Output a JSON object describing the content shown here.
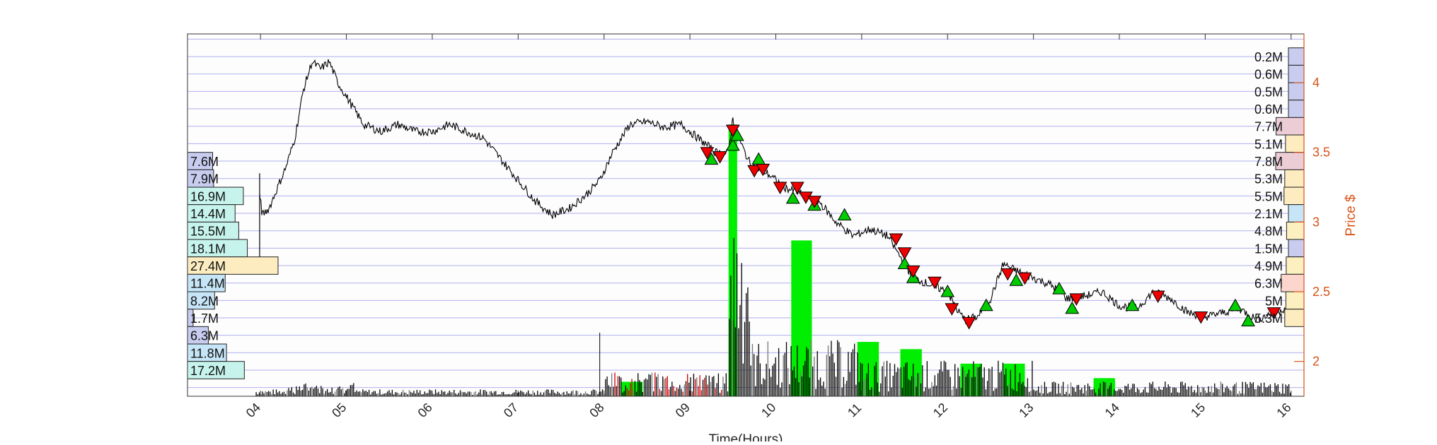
{
  "chart_data": {
    "type": "line",
    "xlabel": "Time(Hours)",
    "ylabel": "Price $",
    "x_ticks": [
      "04",
      "05",
      "06",
      "07",
      "08",
      "09",
      "10",
      "11",
      "12",
      "13",
      "14",
      "15",
      "16"
    ],
    "y_ticks": [
      "2",
      "2.5",
      "3",
      "3.5",
      "4"
    ],
    "xlim": [
      3.15,
      16.15
    ],
    "ylim": [
      1.75,
      4.35
    ],
    "grid": "horizontal",
    "colors": {
      "price": "#000000",
      "buy_marker": "#00cc00",
      "sell_marker": "#ee0000",
      "volume_up": "#00ee00",
      "volume_down": "#cc0000",
      "volume_neutral": "#000000",
      "right_axis": "#d95319",
      "grid": "#b0b0f0"
    },
    "price_series": {
      "name": "",
      "x": [
        3.99,
        4.02,
        4.1,
        4.2,
        4.3,
        4.4,
        4.5,
        4.6,
        4.7,
        4.8,
        4.9,
        5.0,
        5.2,
        5.4,
        5.6,
        5.8,
        6.0,
        6.2,
        6.4,
        6.6,
        6.8,
        7.0,
        7.2,
        7.4,
        7.6,
        7.8,
        7.95,
        8.1,
        8.3,
        8.5,
        8.7,
        8.9,
        9.1,
        9.3,
        9.45,
        9.5,
        9.55,
        9.7,
        9.9,
        10.1,
        10.3,
        10.5,
        10.7,
        10.9,
        11.1,
        11.3,
        11.45,
        11.6,
        11.8,
        12.0,
        12.1,
        12.2,
        12.35,
        12.5,
        12.65,
        12.8,
        13.0,
        13.2,
        13.4,
        13.6,
        13.8,
        14.0,
        14.2,
        14.4,
        14.6,
        14.8,
        15.0,
        15.2,
        15.4,
        15.6,
        15.8,
        16.0
      ],
      "y": [
        3.2,
        3.05,
        3.1,
        3.25,
        3.4,
        3.6,
        3.95,
        4.15,
        4.1,
        4.15,
        4.0,
        3.9,
        3.7,
        3.65,
        3.7,
        3.65,
        3.65,
        3.7,
        3.65,
        3.6,
        3.45,
        3.3,
        3.15,
        3.05,
        3.1,
        3.2,
        3.3,
        3.5,
        3.7,
        3.72,
        3.68,
        3.7,
        3.6,
        3.5,
        3.5,
        3.75,
        3.62,
        3.42,
        3.35,
        3.25,
        3.2,
        3.15,
        3.0,
        2.9,
        2.95,
        2.9,
        2.75,
        2.6,
        2.55,
        2.5,
        2.38,
        2.3,
        2.32,
        2.45,
        2.7,
        2.65,
        2.6,
        2.55,
        2.45,
        2.47,
        2.5,
        2.4,
        2.38,
        2.5,
        2.45,
        2.35,
        2.32,
        2.35,
        2.38,
        2.3,
        2.35,
        2.4
      ]
    },
    "buy_markers": {
      "x": [
        9.25,
        9.5,
        9.55,
        9.8,
        10.2,
        10.45,
        10.8,
        11.5,
        11.6,
        12.0,
        12.45,
        12.8,
        13.3,
        13.45,
        14.15,
        15.35,
        15.5
      ],
      "y": [
        3.45,
        3.55,
        3.62,
        3.45,
        3.17,
        3.12,
        3.05,
        2.7,
        2.6,
        2.5,
        2.4,
        2.58,
        2.52,
        2.38,
        2.4,
        2.4,
        2.29
      ]
    },
    "sell_markers": {
      "x": [
        9.2,
        9.35,
        9.5,
        9.75,
        9.85,
        10.05,
        10.25,
        10.35,
        10.45,
        11.4,
        11.5,
        11.6,
        11.85,
        12.05,
        12.25,
        12.7,
        12.9,
        13.5,
        14.45,
        14.95,
        15.8
      ],
      "y": [
        3.5,
        3.47,
        3.66,
        3.37,
        3.38,
        3.25,
        3.25,
        3.18,
        3.15,
        2.88,
        2.78,
        2.65,
        2.57,
        2.38,
        2.28,
        2.63,
        2.6,
        2.45,
        2.47,
        2.32,
        2.35
      ]
    },
    "volume_profile_left": {
      "labels": [
        "7.6M",
        "7.9M",
        "16.9M",
        "14.4M",
        "15.5M",
        "18.1M",
        "27.4M",
        "11.4M",
        "8.2M",
        "1.7M",
        "6.3M",
        "11.8M",
        "17.2M"
      ],
      "values": [
        7.6,
        7.9,
        16.9,
        14.4,
        15.5,
        18.1,
        27.4,
        11.4,
        8.2,
        1.7,
        6.3,
        11.8,
        17.2
      ],
      "price_levels": [
        3.4375,
        3.3125,
        3.1875,
        3.0625,
        2.9375,
        2.8125,
        2.6875,
        2.5625,
        2.4375,
        2.3125,
        2.1875,
        2.0625,
        1.9375
      ],
      "colors": [
        "#c8cdf0",
        "#c8cdf0",
        "#c6f4ec",
        "#c6f4ec",
        "#c6f4ec",
        "#c6f4ec",
        "#fcecc0",
        "#c6e6f8",
        "#c6e6f8",
        "#c8cdf0",
        "#c8cdf0",
        "#c6e6f8",
        "#c6f4ec"
      ]
    },
    "volume_profile_right": {
      "labels": [
        "0.2M",
        "0.6M",
        "0.5M",
        "0.6M",
        "7.7M",
        "5.1M",
        "7.8M",
        "5.3M",
        "5.5M",
        "2.1M",
        "4.8M",
        "1.5M",
        "4.9M",
        "6.3M",
        "5M",
        "5.3M"
      ],
      "values": [
        0.2,
        0.6,
        0.5,
        0.6,
        7.7,
        5.1,
        7.8,
        5.3,
        5.5,
        2.1,
        4.8,
        1.5,
        4.9,
        6.3,
        5,
        5.3
      ],
      "price_levels": [
        4.1875,
        4.0625,
        3.9375,
        3.8125,
        3.6875,
        3.5625,
        3.4375,
        3.3125,
        3.1875,
        3.0625,
        2.9375,
        2.8125,
        2.6875,
        2.5625,
        2.4375,
        2.3125
      ],
      "colors": [
        "#c8cdf0",
        "#c8cdf0",
        "#c8cdf0",
        "#c8cdf0",
        "#eccdd6",
        "#fcecc0",
        "#eccdd6",
        "#fcecc0",
        "#fcecc0",
        "#c6e6f8",
        "#fcf0c0",
        "#c8cdf0",
        "#fcf0c0",
        "#fcd6cc",
        "#fcf0c0",
        "#fcecc0"
      ]
    },
    "volume_blocks": {
      "x_start": [
        8.2,
        9.45,
        10.18,
        10.95,
        11.45,
        12.15,
        12.65,
        13.7
      ],
      "x_end": [
        8.45,
        9.55,
        10.42,
        11.2,
        11.7,
        12.4,
        12.9,
        13.95
      ],
      "height_fraction": [
        0.04,
        0.75,
        0.43,
        0.15,
        0.13,
        0.09,
        0.09,
        0.05
      ]
    }
  }
}
